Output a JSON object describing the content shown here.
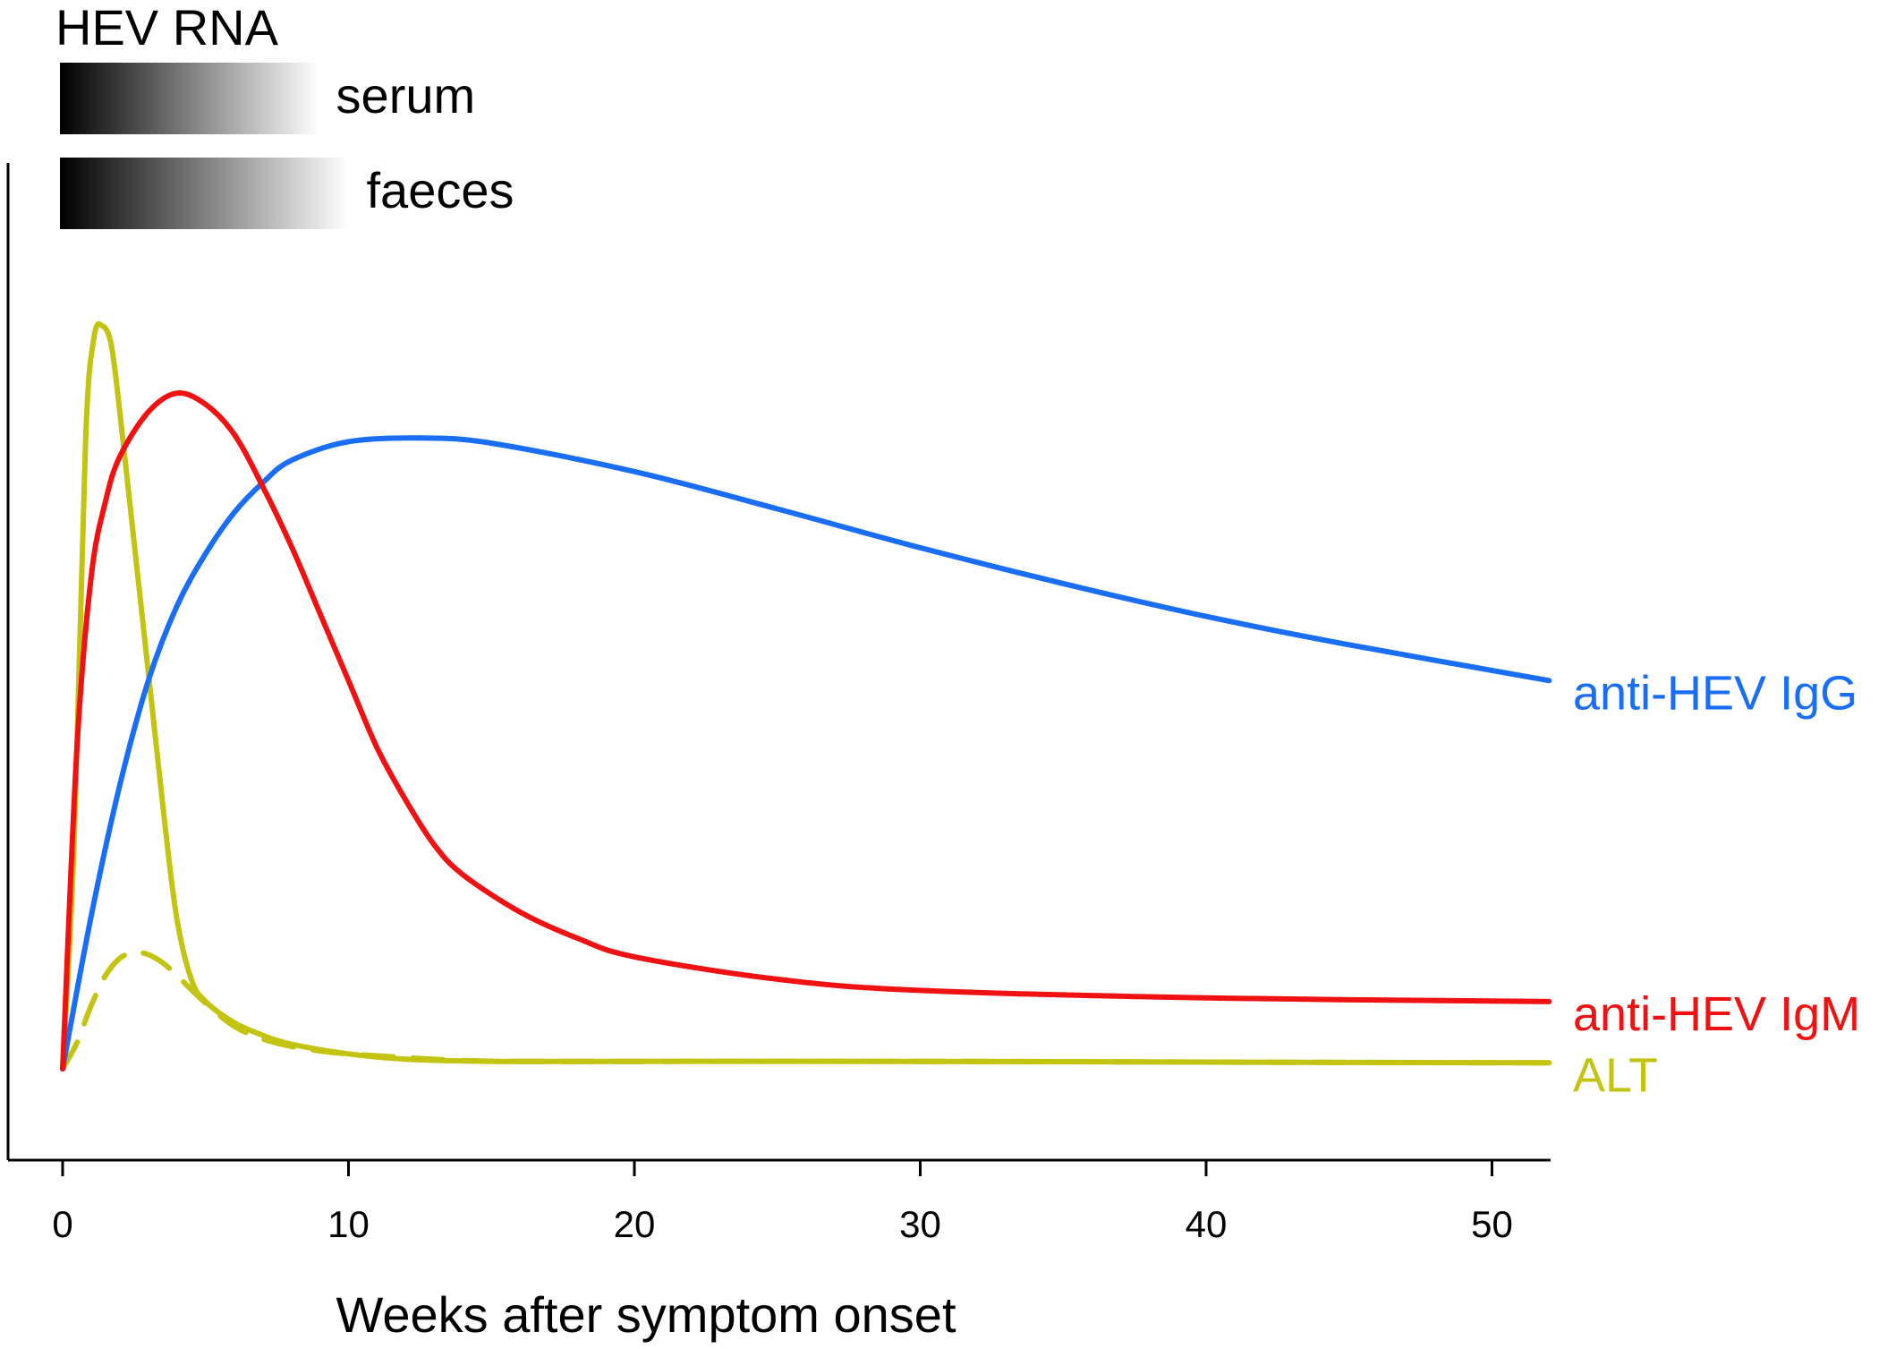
{
  "header": {
    "title": "HEV RNA",
    "bars": [
      {
        "label": "serum",
        "start_week": 0,
        "end_week": 9
      },
      {
        "label": "faeces",
        "start_week": 0,
        "end_week": 10
      }
    ]
  },
  "chart_data": {
    "type": "line",
    "title": "",
    "xlabel": "Weeks after symptom onset",
    "ylabel": "",
    "xlim": [
      -2,
      52
    ],
    "ylim": [
      0,
      1.25
    ],
    "x_ticks": [
      0,
      10,
      20,
      30,
      40,
      50
    ],
    "x_tick_labels": [
      "0",
      "10",
      "20",
      "30",
      "40",
      "50"
    ],
    "grid": false,
    "legend": "labels at right end of each series",
    "series": [
      {
        "name": "anti-HEV IgG",
        "color": "#1a6ef5",
        "dashed": false,
        "x": [
          0,
          1,
          2,
          3,
          4,
          5,
          6,
          7,
          8,
          10,
          12.5,
          15,
          20,
          25,
          30,
          35,
          40,
          45,
          52
        ],
        "y": [
          0,
          0.205,
          0.38,
          0.52,
          0.62,
          0.69,
          0.745,
          0.785,
          0.815,
          0.84,
          0.845,
          0.838,
          0.8,
          0.75,
          0.698,
          0.65,
          0.606,
          0.568,
          0.52
        ]
      },
      {
        "name": "anti-HEV IgM",
        "color": "#f01212",
        "dashed": false,
        "x": [
          0,
          0.5,
          1,
          1.5,
          2,
          3,
          4,
          5,
          6,
          7,
          8,
          9,
          10,
          11,
          12,
          13,
          14,
          16,
          18,
          20,
          25,
          30,
          40,
          52
        ],
        "y": [
          0,
          0.43,
          0.66,
          0.76,
          0.82,
          0.88,
          0.905,
          0.89,
          0.85,
          0.78,
          0.7,
          0.61,
          0.52,
          0.43,
          0.36,
          0.3,
          0.26,
          0.21,
          0.175,
          0.15,
          0.12,
          0.105,
          0.095,
          0.09
        ]
      },
      {
        "name": "ALT",
        "color": "#c3c311",
        "dashed": false,
        "x": [
          0,
          0.4,
          0.8,
          1.1,
          1.4,
          1.7,
          2,
          2.4,
          2.8,
          3.2,
          3.6,
          4,
          4.5,
          5,
          6,
          7,
          8,
          10,
          12,
          15,
          20,
          30,
          40,
          52
        ],
        "y": [
          0,
          0.3,
          0.84,
          0.98,
          0.995,
          0.97,
          0.88,
          0.74,
          0.6,
          0.46,
          0.32,
          0.2,
          0.12,
          0.09,
          0.062,
          0.045,
          0.033,
          0.02,
          0.013,
          0.01,
          0.01,
          0.01,
          0.009,
          0.008
        ]
      },
      {
        "name": "",
        "color": "#c3c311",
        "dashed": true,
        "x": [
          0,
          0.5,
          1,
          1.5,
          2,
          2.5,
          3,
          3.5,
          4,
          5,
          6,
          7,
          8,
          9,
          10,
          12,
          14,
          16,
          20,
          30,
          40,
          52
        ],
        "y": [
          0,
          0.035,
          0.085,
          0.125,
          0.148,
          0.156,
          0.153,
          0.142,
          0.125,
          0.088,
          0.057,
          0.04,
          0.03,
          0.024,
          0.02,
          0.015,
          0.011,
          0.01,
          0.01,
          0.01,
          0.009,
          0.008
        ]
      }
    ]
  }
}
